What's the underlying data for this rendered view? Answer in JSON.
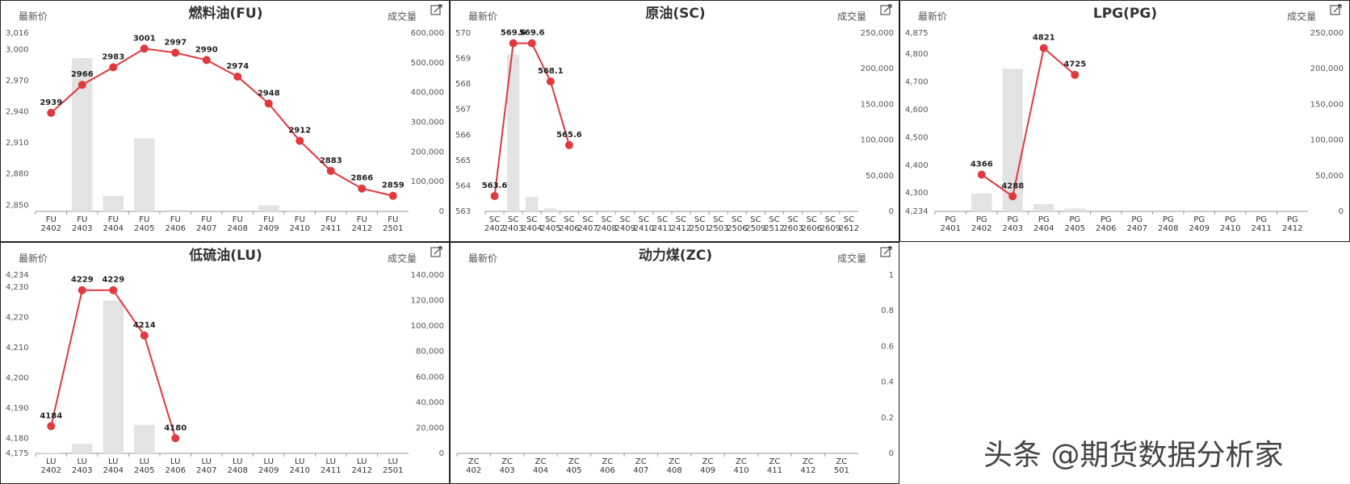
{
  "chart_data": [
    {
      "type": "combo",
      "title": "燃料油(FU)",
      "ylabel": "最新价",
      "y2label": "成交量",
      "categories": [
        "FU\n2402",
        "FU\n2403",
        "FU\n2404",
        "FU\n2405",
        "FU\n2406",
        "FU\n2407",
        "FU\n2408",
        "FU\n2409",
        "FU\n2410",
        "FU\n2411",
        "FU\n2412",
        "FU\n2501"
      ],
      "series": [
        {
          "type": "bar",
          "axis": "y2",
          "color": "#e3e3e3",
          "values": [
            0,
            516000,
            52000,
            246000,
            5000,
            0,
            0,
            20000,
            3000,
            0,
            0,
            0
          ]
        },
        {
          "type": "line",
          "color": "#e0393e",
          "values": [
            2939,
            2966,
            2983,
            3001,
            2997,
            2990,
            2974,
            2948,
            2912,
            2883,
            2866,
            2859
          ]
        }
      ],
      "ylim": [
        2844,
        3016
      ],
      "yticks": [
        {
          "value": 2850,
          "label": "2,850"
        },
        {
          "value": 2880,
          "label": "2,880"
        },
        {
          "value": 2910,
          "label": "2,910"
        },
        {
          "value": 2940,
          "label": "2,940"
        },
        {
          "value": 2970,
          "label": "2,970"
        },
        {
          "value": 3000,
          "label": "3,000"
        },
        {
          "value": 3016,
          "label": "3,016"
        }
      ],
      "y2lim": [
        0,
        600000
      ],
      "y2ticks": [
        0,
        {
          "value": 100000,
          "label": "100,000"
        },
        {
          "value": 200000,
          "label": "200,000"
        },
        {
          "value": 300000,
          "label": "300,000"
        },
        {
          "value": 400000,
          "label": "400,000"
        },
        {
          "value": 500000,
          "label": "500,000"
        },
        {
          "value": 600000,
          "label": "600,000"
        }
      ]
    },
    {
      "type": "combo",
      "title": "原油(SC)",
      "ylabel": "最新价",
      "y2label": "成交量",
      "categories": [
        "SC\n2402",
        "SC\n2403",
        "SC\n2404",
        "SC\n2405",
        "SC\n2406",
        "SC\n2407",
        "SC\n2408",
        "SC\n2409",
        "SC\n2410",
        "SC\n2411",
        "SC\n2412",
        "SC\n2501",
        "SC\n2503",
        "SC\n2506",
        "SC\n2509",
        "SC\n2512",
        "SC\n2603",
        "SC\n2606",
        "SC\n2609",
        "SC\n2612"
      ],
      "series": [
        {
          "type": "bar",
          "axis": "y2",
          "color": "#e3e3e3",
          "values": [
            0,
            220000,
            20500,
            4000,
            0,
            0,
            0,
            0,
            0,
            0,
            0,
            0,
            0,
            0,
            0,
            0,
            0,
            0,
            0,
            0
          ]
        },
        {
          "type": "line",
          "color": "#e0393e",
          "values": [
            563.6,
            569.6,
            569.6,
            568.1,
            565.6,
            null,
            null,
            null,
            null,
            null,
            null,
            null,
            null,
            null,
            null,
            null,
            null,
            null,
            null,
            null
          ]
        }
      ],
      "ylim": [
        563,
        570
      ],
      "yticks": [
        563,
        564,
        565,
        566,
        567,
        568,
        569,
        570
      ],
      "y2lim": [
        0,
        250000
      ],
      "y2ticks": [
        0,
        {
          "value": 50000,
          "label": "50,000"
        },
        {
          "value": 100000,
          "label": "100,000"
        },
        {
          "value": 150000,
          "label": "150,000"
        },
        {
          "value": 200000,
          "label": "200,000"
        },
        {
          "value": 250000,
          "label": "250,000"
        }
      ]
    },
    {
      "type": "combo",
      "title": "LPG(PG)",
      "ylabel": "最新价",
      "y2label": "成交量",
      "categories": [
        "PG\n2401",
        "PG\n2402",
        "PG\n2403",
        "PG\n2404",
        "PG\n2405",
        "PG\n2406",
        "PG\n2407",
        "PG\n2408",
        "PG\n2409",
        "PG\n2410",
        "PG\n2411",
        "PG\n2412"
      ],
      "series": [
        {
          "type": "bar",
          "axis": "y2",
          "color": "#e3e3e3",
          "values": [
            0,
            25000,
            200000,
            10000,
            4000,
            0,
            0,
            0,
            0,
            0,
            0,
            0
          ]
        },
        {
          "type": "line",
          "color": "#e0393e",
          "values": [
            null,
            4366,
            4288,
            4821,
            4725,
            null,
            null,
            null,
            null,
            null,
            null,
            null
          ]
        }
      ],
      "ylim": [
        4234,
        4875
      ],
      "yticks": [
        {
          "value": 4234,
          "label": "4,234"
        },
        {
          "value": 4300,
          "label": "4,300"
        },
        {
          "value": 4400,
          "label": "4,400"
        },
        {
          "value": 4500,
          "label": "4,500"
        },
        {
          "value": 4600,
          "label": "4,600"
        },
        {
          "value": 4700,
          "label": "4,700"
        },
        {
          "value": 4800,
          "label": "4,800"
        },
        {
          "value": 4875,
          "label": "4,875"
        }
      ],
      "y2lim": [
        0,
        250000
      ],
      "y2ticks": [
        0,
        {
          "value": 50000,
          "label": "50,000"
        },
        {
          "value": 100000,
          "label": "100,000"
        },
        {
          "value": 150000,
          "label": "150,000"
        },
        {
          "value": 200000,
          "label": "200,000"
        },
        {
          "value": 250000,
          "label": "250,000"
        }
      ]
    },
    {
      "type": "combo",
      "title": "低硫油(LU)",
      "ylabel": "最新价",
      "y2label": "成交量",
      "categories": [
        "LU\n2402",
        "LU\n2403",
        "LU\n2404",
        "LU\n2405",
        "LU\n2406",
        "LU\n2407",
        "LU\n2408",
        "LU\n2409",
        "LU\n2410",
        "LU\n2411",
        "LU\n2412",
        "LU\n2501"
      ],
      "series": [
        {
          "type": "bar",
          "axis": "y2",
          "color": "#e3e3e3",
          "values": [
            500,
            7500,
            120000,
            22400,
            0,
            0,
            0,
            0,
            0,
            0,
            0,
            0
          ]
        },
        {
          "type": "line",
          "color": "#e0393e",
          "values": [
            4184,
            4229,
            4229,
            4214,
            4180,
            null,
            null,
            null,
            null,
            null,
            null,
            null
          ]
        }
      ],
      "ylim": [
        4175,
        4234
      ],
      "yticks": [
        {
          "value": 4175,
          "label": "4,175"
        },
        {
          "value": 4180,
          "label": "4,180"
        },
        {
          "value": 4190,
          "label": "4,190"
        },
        {
          "value": 4200,
          "label": "4,200"
        },
        {
          "value": 4210,
          "label": "4,210"
        },
        {
          "value": 4220,
          "label": "4,220"
        },
        {
          "value": 4230,
          "label": "4,230"
        },
        {
          "value": 4234,
          "label": "4,234"
        }
      ],
      "y2lim": [
        0,
        140000
      ],
      "y2ticks": [
        0,
        {
          "value": 20000,
          "label": "20,000"
        },
        {
          "value": 40000,
          "label": "40,000"
        },
        {
          "value": 60000,
          "label": "60,000"
        },
        {
          "value": 80000,
          "label": "80,000"
        },
        {
          "value": 100000,
          "label": "100,000"
        },
        {
          "value": 120000,
          "label": "120,000"
        },
        {
          "value": 140000,
          "label": "140,000"
        }
      ]
    },
    {
      "type": "combo",
      "title": "动力煤(ZC)",
      "ylabel": "最新价",
      "y2label": "成交量",
      "categories": [
        "ZC\n402",
        "ZC\n403",
        "ZC\n404",
        "ZC\n405",
        "ZC\n406",
        "ZC\n407",
        "ZC\n408",
        "ZC\n409",
        "ZC\n410",
        "ZC\n411",
        "ZC\n412",
        "ZC\n501"
      ],
      "series": [],
      "y2lim": [
        0,
        1
      ],
      "y2ticks": [
        0,
        0.2,
        0.4,
        0.6,
        0.8,
        1
      ]
    }
  ],
  "watermark": "头条 @期货数据分析家"
}
